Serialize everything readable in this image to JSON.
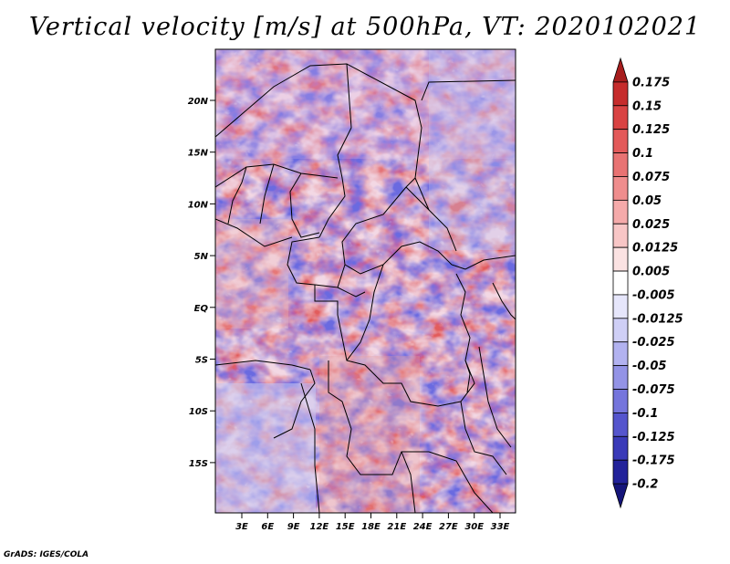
{
  "title": "Vertical velocity [m/s] at 500hPa, VT: 2020102021",
  "footer": "GrADS: IGES/COLA",
  "map": {
    "lat_labels": [
      "20N",
      "15N",
      "10N",
      "5N",
      "EQ",
      "5S",
      "10S",
      "15S"
    ],
    "lon_labels": [
      "3E",
      "6E",
      "9E",
      "12E",
      "15E",
      "18E",
      "21E",
      "24E",
      "27E",
      "30E",
      "33E"
    ]
  },
  "colorbar": {
    "labels": [
      "0.175",
      "0.15",
      "0.125",
      "0.1",
      "0.075",
      "0.05",
      "0.025",
      "0.0125",
      "0.005",
      "-0.005",
      "-0.0125",
      "-0.025",
      "-0.05",
      "-0.075",
      "-0.1",
      "-0.125",
      "-0.175",
      "-0.2"
    ],
    "colors": [
      "#a71d1d",
      "#c62c2c",
      "#d94343",
      "#e35a5a",
      "#e87373",
      "#ef8d8d",
      "#f5aaaa",
      "#f8c6c6",
      "#fbe2e2",
      "#ffffff",
      "#e6e6fb",
      "#cfcff6",
      "#b2b2f0",
      "#9393e6",
      "#7575dc",
      "#5555cd",
      "#3a3ab8",
      "#22229a",
      "#15157a"
    ]
  }
}
